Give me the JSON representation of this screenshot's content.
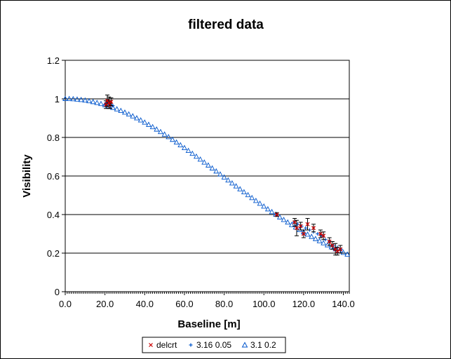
{
  "chart_data": {
    "type": "scatter",
    "title": "filtered data",
    "xlabel": "Baseline [m]",
    "ylabel": "Visibility",
    "xlim": [
      0,
      143
    ],
    "ylim": [
      0,
      1.2
    ],
    "xticks": [
      0,
      20,
      40,
      60,
      80,
      100,
      120,
      140
    ],
    "xtick_labels": [
      "0.0",
      "20.0",
      "40.0",
      "60.0",
      "80.0",
      "100.0",
      "120.0",
      "140.0"
    ],
    "yticks": [
      0,
      0.2,
      0.4,
      0.6,
      0.8,
      1,
      1.2
    ],
    "ytick_labels": [
      "0",
      "0.2",
      "0.4",
      "0.6",
      "0.8",
      "1",
      "1.2"
    ],
    "grid": "horizontal major",
    "legend_position": "bottom",
    "series": [
      {
        "name": "delcrt",
        "marker": "x",
        "color": "#cc0000",
        "points": [
          {
            "x": 20.5,
            "y": 0.97,
            "err": 0.02
          },
          {
            "x": 21.2,
            "y": 0.99,
            "err": 0.03
          },
          {
            "x": 22.0,
            "y": 0.98,
            "err": 0.03
          },
          {
            "x": 22.6,
            "y": 0.97,
            "err": 0.02
          },
          {
            "x": 23.1,
            "y": 0.985,
            "err": 0.02
          },
          {
            "x": 106.5,
            "y": 0.4,
            "err": 0.01
          },
          {
            "x": 115.5,
            "y": 0.36,
            "err": 0.02
          },
          {
            "x": 116.5,
            "y": 0.33,
            "err": 0.04
          },
          {
            "x": 118.5,
            "y": 0.34,
            "err": 0.02
          },
          {
            "x": 120.0,
            "y": 0.3,
            "err": 0.02
          },
          {
            "x": 122.0,
            "y": 0.35,
            "err": 0.03
          },
          {
            "x": 125.0,
            "y": 0.33,
            "err": 0.02
          },
          {
            "x": 128.5,
            "y": 0.3,
            "err": 0.02
          },
          {
            "x": 130.0,
            "y": 0.29,
            "err": 0.02
          },
          {
            "x": 133.0,
            "y": 0.26,
            "err": 0.02
          },
          {
            "x": 134.5,
            "y": 0.24,
            "err": 0.02
          },
          {
            "x": 136.0,
            "y": 0.22,
            "err": 0.03
          },
          {
            "x": 137.0,
            "y": 0.21,
            "err": 0.02
          },
          {
            "x": 138.5,
            "y": 0.22,
            "err": 0.02
          }
        ]
      },
      {
        "name": "3.16 0.05",
        "marker": "plus",
        "color": "#0055cc",
        "points": [
          {
            "x": 20.0,
            "y": 0.97
          },
          {
            "x": 21.0,
            "y": 0.98
          },
          {
            "x": 22.0,
            "y": 0.975
          },
          {
            "x": 23.0,
            "y": 0.97
          },
          {
            "x": 24.0,
            "y": 0.965
          },
          {
            "x": 106.0,
            "y": 0.4
          },
          {
            "x": 115.0,
            "y": 0.36
          },
          {
            "x": 117.0,
            "y": 0.35
          },
          {
            "x": 119.0,
            "y": 0.34
          },
          {
            "x": 121.0,
            "y": 0.33
          },
          {
            "x": 123.0,
            "y": 0.32
          },
          {
            "x": 125.0,
            "y": 0.31
          },
          {
            "x": 127.0,
            "y": 0.3
          },
          {
            "x": 129.0,
            "y": 0.29
          },
          {
            "x": 131.0,
            "y": 0.27
          },
          {
            "x": 133.0,
            "y": 0.26
          },
          {
            "x": 135.0,
            "y": 0.24
          },
          {
            "x": 137.0,
            "y": 0.23
          },
          {
            "x": 139.0,
            "y": 0.22
          }
        ]
      },
      {
        "name": "3.1 0.2",
        "marker": "triangle",
        "color": "#0055cc",
        "curve": {
          "x_start": 0,
          "x_end": 142,
          "x_step": 2,
          "v_at_zero": 1.0,
          "v_factor": 0.86,
          "fwhm_baseline": 105,
          "note_color": "#0055cc"
        }
      }
    ]
  },
  "legend": {
    "items": [
      {
        "label": "delcrt"
      },
      {
        "label": "3.16 0.05"
      },
      {
        "label": "3.1 0.2"
      }
    ]
  }
}
